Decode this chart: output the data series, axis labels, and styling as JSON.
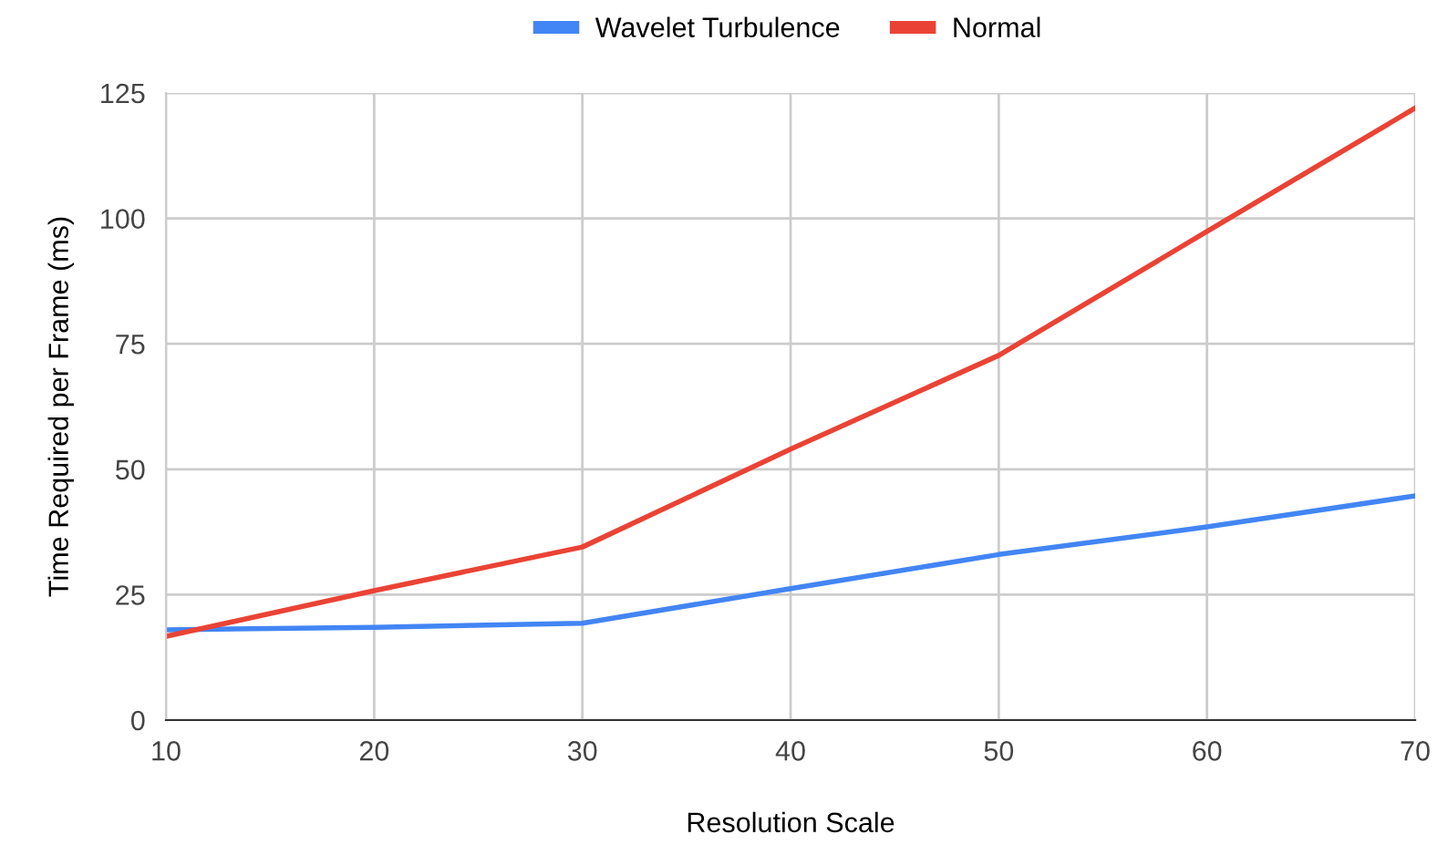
{
  "chart_data": {
    "type": "line",
    "xlabel": "Resolution Scale",
    "ylabel": "Time Required per Frame (ms)",
    "x": [
      10,
      20,
      30,
      40,
      50,
      60,
      70
    ],
    "series": [
      {
        "name": "Wavelet Turbulence",
        "color": "#4285f4",
        "values": [
          18,
          18.5,
          19.3,
          26.2,
          33,
          38.5,
          44.7
        ]
      },
      {
        "name": "Normal",
        "color": "#ea4335",
        "values": [
          16.7,
          25.8,
          34.5,
          54,
          72.7,
          97.4,
          122
        ]
      }
    ],
    "xlim": [
      10,
      70
    ],
    "xticks": [
      10,
      20,
      30,
      40,
      50,
      60,
      70
    ],
    "ylim": [
      0,
      125
    ],
    "yticks": [
      0,
      25,
      50,
      75,
      100,
      125
    ],
    "grid": true,
    "legend": "top",
    "marker": "none",
    "line_style": "solid"
  }
}
